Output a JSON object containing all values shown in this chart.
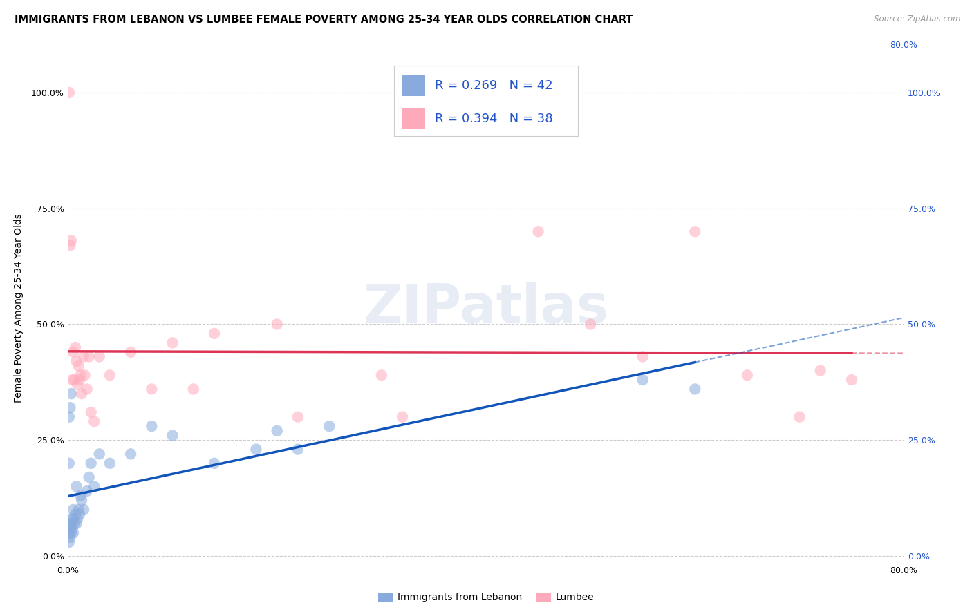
{
  "title": "IMMIGRANTS FROM LEBANON VS LUMBEE FEMALE POVERTY AMONG 25-34 YEAR OLDS CORRELATION CHART",
  "source": "Source: ZipAtlas.com",
  "ylabel": "Female Poverty Among 25-34 Year Olds",
  "xlim": [
    0.0,
    0.8
  ],
  "ylim": [
    -0.01,
    1.08
  ],
  "ytick_values": [
    0.0,
    0.25,
    0.5,
    0.75,
    1.0
  ],
  "ytick_labels": [
    "0.0%",
    "25.0%",
    "50.0%",
    "75.0%",
    "100.0%"
  ],
  "xtick_values": [
    0.0,
    0.8
  ],
  "xtick_labels": [
    "0.0%",
    "80.0%"
  ],
  "grid_color": "#cccccc",
  "watermark": "ZIPatlas",
  "blue_color": "#88aadd",
  "pink_color": "#ffaabb",
  "blue_line_color": "#1155bb",
  "pink_line_color": "#dd3355",
  "legend_color": "#2255cc",
  "blue_R": "0.269",
  "blue_N": "42",
  "pink_R": "0.394",
  "pink_N": "38",
  "blue_scatter_x": [
    0.001,
    0.001,
    0.001,
    0.001,
    0.001,
    0.002,
    0.002,
    0.002,
    0.003,
    0.003,
    0.003,
    0.004,
    0.004,
    0.005,
    0.005,
    0.005,
    0.006,
    0.007,
    0.008,
    0.008,
    0.009,
    0.01,
    0.011,
    0.012,
    0.013,
    0.015,
    0.018,
    0.02,
    0.022,
    0.025,
    0.03,
    0.04,
    0.06,
    0.08,
    0.1,
    0.14,
    0.18,
    0.2,
    0.22,
    0.25,
    0.55,
    0.6
  ],
  "blue_scatter_y": [
    0.03,
    0.05,
    0.07,
    0.2,
    0.3,
    0.04,
    0.06,
    0.32,
    0.05,
    0.07,
    0.35,
    0.06,
    0.08,
    0.05,
    0.08,
    0.1,
    0.07,
    0.09,
    0.07,
    0.15,
    0.08,
    0.1,
    0.09,
    0.13,
    0.12,
    0.1,
    0.14,
    0.17,
    0.2,
    0.15,
    0.22,
    0.2,
    0.22,
    0.28,
    0.26,
    0.2,
    0.23,
    0.27,
    0.23,
    0.28,
    0.38,
    0.36
  ],
  "pink_scatter_x": [
    0.001,
    0.002,
    0.003,
    0.004,
    0.005,
    0.006,
    0.007,
    0.008,
    0.009,
    0.01,
    0.011,
    0.012,
    0.013,
    0.015,
    0.016,
    0.018,
    0.02,
    0.022,
    0.025,
    0.03,
    0.04,
    0.06,
    0.08,
    0.1,
    0.12,
    0.14,
    0.2,
    0.22,
    0.3,
    0.32,
    0.45,
    0.5,
    0.55,
    0.6,
    0.65,
    0.7,
    0.72,
    0.75
  ],
  "pink_scatter_y": [
    1.0,
    0.67,
    0.68,
    0.38,
    0.44,
    0.38,
    0.45,
    0.42,
    0.37,
    0.41,
    0.38,
    0.39,
    0.35,
    0.43,
    0.39,
    0.36,
    0.43,
    0.31,
    0.29,
    0.43,
    0.39,
    0.44,
    0.36,
    0.46,
    0.36,
    0.48,
    0.5,
    0.3,
    0.39,
    0.3,
    0.7,
    0.5,
    0.43,
    0.7,
    0.39,
    0.3,
    0.4,
    0.38
  ]
}
